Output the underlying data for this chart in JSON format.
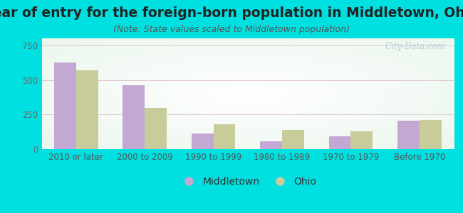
{
  "title": "Year of entry for the foreign-born population in Middletown, Ohio",
  "subtitle": "(Note: State values scaled to Middletown population)",
  "categories": [
    "2010 or later",
    "2000 to 2009",
    "1990 to 1999",
    "1980 to 1989",
    "1970 to 1979",
    "Before 1970"
  ],
  "middletown_values": [
    625,
    460,
    115,
    55,
    90,
    205
  ],
  "ohio_values": [
    570,
    300,
    180,
    140,
    130,
    210
  ],
  "middletown_color": "#c4a8d4",
  "ohio_color": "#c8cc9a",
  "background_outer": "#00e0e0",
  "ylim": [
    0,
    800
  ],
  "yticks": [
    0,
    250,
    500,
    750
  ],
  "bar_width": 0.32,
  "watermark": "City-Data.com",
  "title_fontsize": 13.5,
  "subtitle_fontsize": 9,
  "tick_fontsize": 8.5,
  "legend_fontsize": 10
}
